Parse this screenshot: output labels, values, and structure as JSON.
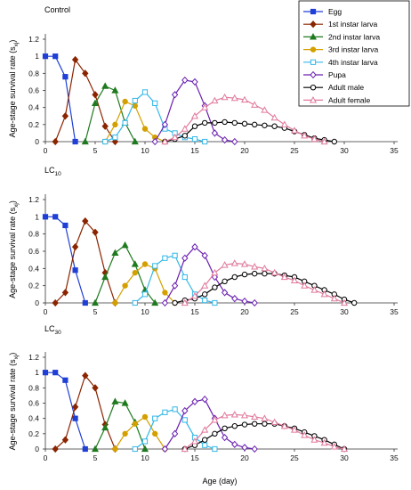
{
  "figure": {
    "x_axis_label": "Age (day)"
  },
  "legend": [
    {
      "name": "Egg",
      "color": "#1f3fd6",
      "marker": "square-filled"
    },
    {
      "name": "1st instar larva",
      "color": "#8b2500",
      "marker": "diamond-filled"
    },
    {
      "name": "2nd instar larva",
      "color": "#1f7a1f",
      "marker": "triangle-filled"
    },
    {
      "name": "3rd instar larva",
      "color": "#d4a000",
      "marker": "circle-filled"
    },
    {
      "name": "4th instar larva",
      "color": "#33b7e8",
      "marker": "square-open"
    },
    {
      "name": "Pupa",
      "color": "#6a1fb0",
      "marker": "diamond-open"
    },
    {
      "name": "Adult male",
      "color": "#000000",
      "marker": "circle-open"
    },
    {
      "name": "Adult female",
      "color": "#e07a9c",
      "marker": "triangle-open"
    }
  ],
  "chart_data": [
    {
      "type": "line",
      "title": "Control",
      "title_sub": "",
      "ylabel": "Age-stage survival rate (s_xj)",
      "xlim": [
        0,
        35
      ],
      "ylim": [
        0,
        1.2
      ],
      "xticks": [
        0,
        5,
        10,
        15,
        20,
        25,
        30,
        35
      ],
      "yticks": [
        "0",
        "0.2",
        "0.4",
        "0.6",
        "0.8",
        "1",
        "1.2"
      ],
      "series": [
        {
          "name": "Egg",
          "x": [
            0,
            1,
            2,
            3
          ],
          "y": [
            1.0,
            1.0,
            0.76,
            0.0
          ]
        },
        {
          "name": "1st instar larva",
          "x": [
            1,
            2,
            3,
            4,
            5,
            6,
            7
          ],
          "y": [
            0.0,
            0.3,
            0.96,
            0.8,
            0.55,
            0.18,
            0.0
          ]
        },
        {
          "name": "2nd instar larva",
          "x": [
            4,
            5,
            6,
            7,
            8,
            9
          ],
          "y": [
            0.0,
            0.45,
            0.65,
            0.6,
            0.22,
            0.0
          ]
        },
        {
          "name": "3rd instar larva",
          "x": [
            6,
            7,
            8,
            9,
            10,
            11,
            12
          ],
          "y": [
            0.0,
            0.2,
            0.47,
            0.42,
            0.15,
            0.05,
            0.0
          ]
        },
        {
          "name": "4th instar larva",
          "x": [
            6,
            7,
            8,
            9,
            10,
            11,
            12,
            13,
            14,
            15,
            16
          ],
          "y": [
            0.0,
            0.05,
            0.22,
            0.48,
            0.58,
            0.45,
            0.15,
            0.1,
            0.05,
            0.03,
            0.0
          ]
        },
        {
          "name": "Pupa",
          "x": [
            11,
            12,
            13,
            14,
            15,
            16,
            17,
            18,
            19
          ],
          "y": [
            0.0,
            0.2,
            0.55,
            0.72,
            0.7,
            0.42,
            0.1,
            0.02,
            0.0
          ]
        },
        {
          "name": "Adult male",
          "x": [
            12,
            13,
            14,
            15,
            16,
            17,
            18,
            19,
            20,
            21,
            22,
            23,
            24,
            25,
            26,
            27,
            28,
            29
          ],
          "y": [
            0.0,
            0.03,
            0.07,
            0.18,
            0.22,
            0.22,
            0.23,
            0.22,
            0.21,
            0.2,
            0.19,
            0.18,
            0.16,
            0.12,
            0.08,
            0.04,
            0.02,
            0.0
          ]
        },
        {
          "name": "Adult female",
          "x": [
            12,
            13,
            14,
            15,
            16,
            17,
            18,
            19,
            20,
            21,
            22,
            23,
            24,
            25,
            26,
            27,
            28
          ],
          "y": [
            0.0,
            0.05,
            0.15,
            0.3,
            0.4,
            0.48,
            0.52,
            0.51,
            0.49,
            0.43,
            0.37,
            0.28,
            0.2,
            0.13,
            0.07,
            0.03,
            0.0
          ]
        }
      ]
    },
    {
      "type": "line",
      "title": "LC",
      "title_sub": "10",
      "ylabel": "Age-stage survival rate (s_xj)",
      "xlim": [
        0,
        35
      ],
      "ylim": [
        0,
        1.2
      ],
      "xticks": [
        0,
        5,
        10,
        15,
        20,
        25,
        30,
        35
      ],
      "yticks": [
        "0",
        "0.2",
        "0.4",
        "0.6",
        "0.8",
        "1",
        "1.2"
      ],
      "series": [
        {
          "name": "Egg",
          "x": [
            0,
            1,
            2,
            3,
            4
          ],
          "y": [
            1.0,
            1.0,
            0.9,
            0.38,
            0.0
          ]
        },
        {
          "name": "1st instar larva",
          "x": [
            1,
            2,
            3,
            4,
            5,
            6,
            7
          ],
          "y": [
            0.0,
            0.12,
            0.65,
            0.95,
            0.82,
            0.35,
            0.0
          ]
        },
        {
          "name": "2nd instar larva",
          "x": [
            5,
            6,
            7,
            8,
            9,
            10,
            11
          ],
          "y": [
            0.0,
            0.3,
            0.58,
            0.67,
            0.45,
            0.15,
            0.0
          ]
        },
        {
          "name": "3rd instar larva",
          "x": [
            7,
            8,
            9,
            10,
            11,
            12,
            13
          ],
          "y": [
            0.0,
            0.2,
            0.35,
            0.45,
            0.4,
            0.12,
            0.0
          ]
        },
        {
          "name": "4th instar larva",
          "x": [
            9,
            10,
            11,
            12,
            13,
            14,
            15,
            16,
            17
          ],
          "y": [
            0.0,
            0.1,
            0.43,
            0.52,
            0.55,
            0.3,
            0.1,
            0.03,
            0.0
          ]
        },
        {
          "name": "Pupa",
          "x": [
            12,
            13,
            14,
            15,
            16,
            17,
            18,
            19,
            20,
            21
          ],
          "y": [
            0.0,
            0.2,
            0.52,
            0.65,
            0.55,
            0.3,
            0.12,
            0.05,
            0.02,
            0.0
          ]
        },
        {
          "name": "Adult male",
          "x": [
            13,
            14,
            15,
            16,
            17,
            18,
            19,
            20,
            21,
            22,
            23,
            24,
            25,
            26,
            27,
            28,
            29,
            30,
            31
          ],
          "y": [
            0.0,
            0.03,
            0.05,
            0.1,
            0.18,
            0.25,
            0.3,
            0.33,
            0.34,
            0.34,
            0.34,
            0.32,
            0.3,
            0.25,
            0.2,
            0.15,
            0.1,
            0.04,
            0.0
          ]
        },
        {
          "name": "Adult female",
          "x": [
            14,
            15,
            16,
            17,
            18,
            19,
            20,
            21,
            22,
            23,
            24,
            25,
            26,
            27,
            28,
            29,
            30
          ],
          "y": [
            0.0,
            0.08,
            0.2,
            0.35,
            0.44,
            0.46,
            0.45,
            0.42,
            0.4,
            0.35,
            0.3,
            0.26,
            0.2,
            0.15,
            0.1,
            0.05,
            0.0
          ]
        }
      ]
    },
    {
      "type": "line",
      "title": "LC",
      "title_sub": "30",
      "ylabel": "Age-stage survival rate (s_xj)",
      "xlim": [
        0,
        35
      ],
      "ylim": [
        0,
        1.2
      ],
      "xticks": [
        0,
        5,
        10,
        15,
        20,
        25,
        30,
        35
      ],
      "yticks": [
        "0",
        "0.2",
        "0.4",
        "0.6",
        "0.8",
        "1",
        "1.2"
      ],
      "series": [
        {
          "name": "Egg",
          "x": [
            0,
            1,
            2,
            3,
            4
          ],
          "y": [
            1.0,
            1.0,
            0.9,
            0.4,
            0.0
          ]
        },
        {
          "name": "1st instar larva",
          "x": [
            1,
            2,
            3,
            4,
            5,
            6,
            7
          ],
          "y": [
            0.0,
            0.12,
            0.55,
            0.96,
            0.8,
            0.32,
            0.0
          ]
        },
        {
          "name": "2nd instar larva",
          "x": [
            5,
            6,
            7,
            8,
            9,
            10
          ],
          "y": [
            0.0,
            0.28,
            0.62,
            0.6,
            0.35,
            0.0
          ]
        },
        {
          "name": "3rd instar larva",
          "x": [
            7,
            8,
            9,
            10,
            11,
            12
          ],
          "y": [
            0.0,
            0.2,
            0.33,
            0.42,
            0.2,
            0.0
          ]
        },
        {
          "name": "4th instar larva",
          "x": [
            9,
            10,
            11,
            12,
            13,
            14,
            15,
            16,
            17
          ],
          "y": [
            0.0,
            0.1,
            0.4,
            0.48,
            0.52,
            0.38,
            0.15,
            0.05,
            0.0
          ]
        },
        {
          "name": "Pupa",
          "x": [
            12,
            13,
            14,
            15,
            16,
            17,
            18,
            19,
            20,
            21
          ],
          "y": [
            0.0,
            0.2,
            0.5,
            0.62,
            0.65,
            0.4,
            0.15,
            0.06,
            0.02,
            0.0
          ]
        },
        {
          "name": "Adult male",
          "x": [
            14,
            15,
            16,
            17,
            18,
            19,
            20,
            21,
            22,
            23,
            24,
            25,
            26,
            27,
            28,
            29,
            30
          ],
          "y": [
            0.0,
            0.05,
            0.12,
            0.2,
            0.27,
            0.3,
            0.32,
            0.33,
            0.33,
            0.33,
            0.3,
            0.27,
            0.22,
            0.17,
            0.12,
            0.06,
            0.0
          ]
        },
        {
          "name": "Adult female",
          "x": [
            14,
            15,
            16,
            17,
            18,
            19,
            20,
            21,
            22,
            23,
            24,
            25,
            26,
            27,
            28,
            29,
            30
          ],
          "y": [
            0.0,
            0.1,
            0.25,
            0.38,
            0.44,
            0.45,
            0.44,
            0.42,
            0.4,
            0.35,
            0.3,
            0.25,
            0.18,
            0.12,
            0.08,
            0.03,
            0.0
          ]
        }
      ]
    }
  ]
}
